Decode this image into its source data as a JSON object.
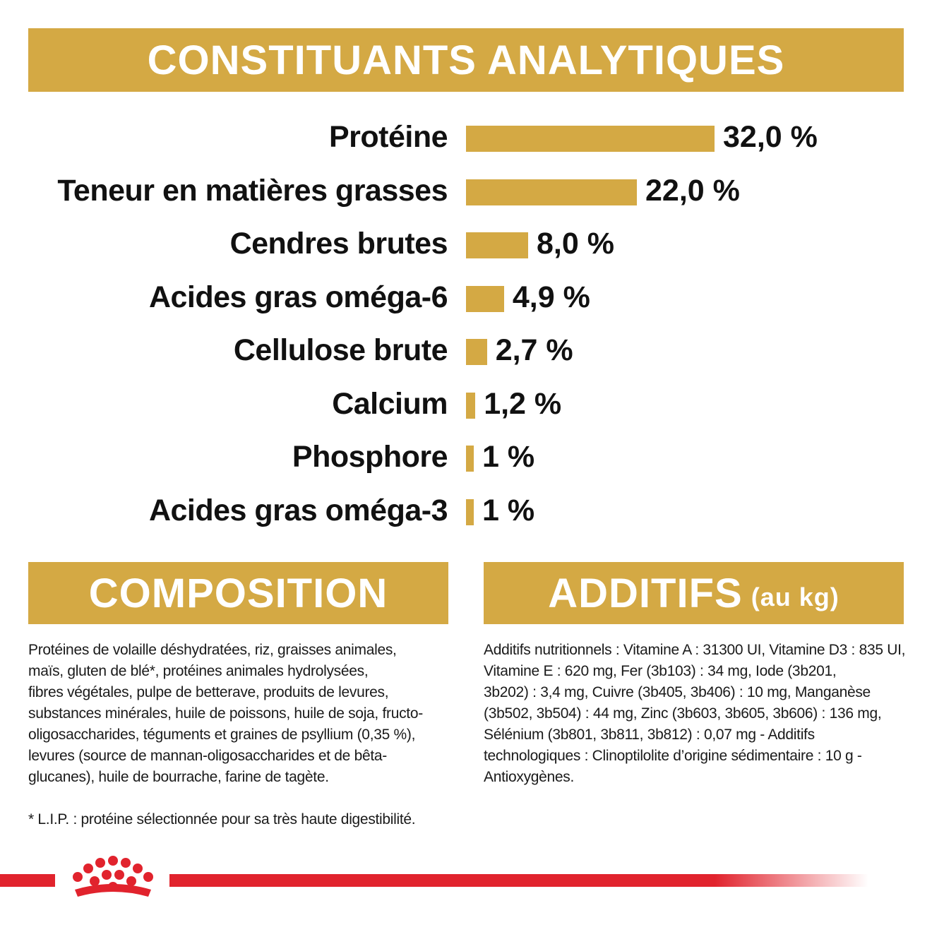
{
  "header": {
    "title": "CONSTITUANTS ANALYTIQUES"
  },
  "nutrients": [
    {
      "label": "Protéine",
      "value_text": "32,0 %",
      "value": 32.0
    },
    {
      "label": "Teneur en matières grasses",
      "value_text": "22,0 %",
      "value": 22.0
    },
    {
      "label": "Cendres brutes",
      "value_text": "8,0 %",
      "value": 8.0
    },
    {
      "label": "Acides gras oméga-6",
      "value_text": "4,9 %",
      "value": 4.9
    },
    {
      "label": "Cellulose brute",
      "value_text": "2,7 %",
      "value": 2.7
    },
    {
      "label": "Calcium",
      "value_text": "1,2 %",
      "value": 1.2
    },
    {
      "label": "Phosphore",
      "value_text": "1 %",
      "value": 1
    },
    {
      "label": "Acides gras oméga-3",
      "value_text": "1 %",
      "value": 1
    }
  ],
  "composition": {
    "title": "COMPOSITION",
    "lines": [
      "Protéines de volaille déshydratées, riz, graisses animales,",
      "maïs, gluten de blé*, protéines animales hydrolysées,",
      "fibres végétales, pulpe de betterave, produits de levures,",
      "substances minérales, huile de poissons, huile de soja, fructo-",
      "oligosaccharides, téguments et graines de psyllium (0,35 %),",
      "levures (source de mannan-oligosaccharides et de bêta-",
      "glucanes), huile de bourrache, farine de tagète."
    ],
    "footnote": "* L.I.P. : protéine sélectionnée pour sa très haute digestibilité."
  },
  "additifs": {
    "title": "ADDITIFS",
    "title_suffix": "(au kg)",
    "lines": [
      "Additifs nutritionnels : Vitamine A : 31300 UI, Vitamine D3 : 835 UI,",
      "Vitamine E : 620 mg, Fer (3b103) : 34 mg, Iode (3b201,",
      "3b202) : 3,4 mg, Cuivre (3b405, 3b406) : 10 mg, Manganèse",
      "(3b502, 3b504) : 44 mg, Zinc (3b603, 3b605, 3b606) : 136 mg,",
      "Sélénium (3b801, 3b811, 3b812) : 0,07 mg - Additifs",
      "technologiques : Clinoptilolite d’origine sédimentaire : 10 g -",
      "Antioxygènes."
    ]
  },
  "colors": {
    "accent": "#d4a944",
    "brand_red": "#e1232d",
    "text": "#111111"
  },
  "brand": {
    "logo_icon": "crown-icon"
  }
}
